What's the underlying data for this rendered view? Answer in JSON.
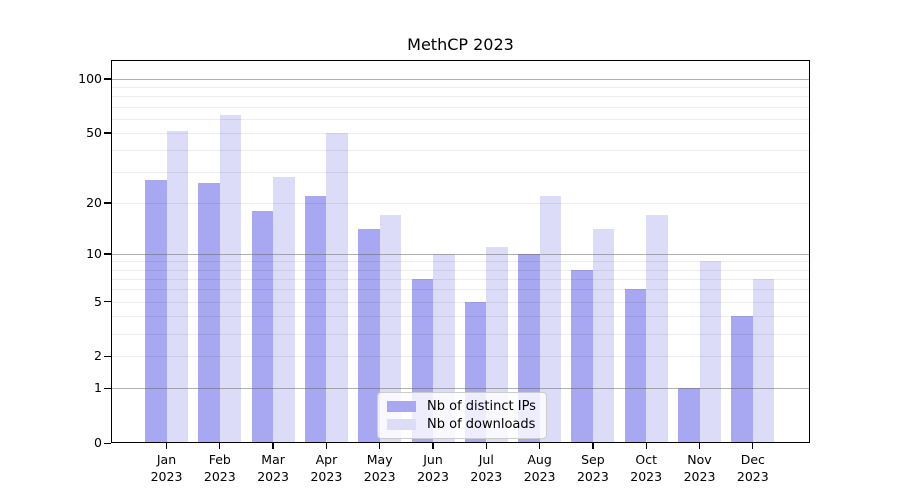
{
  "chart_data": {
    "type": "bar",
    "title": "MethCP 2023",
    "categories": [
      "Jan",
      "Feb",
      "Mar",
      "Apr",
      "May",
      "Jun",
      "Jul",
      "Aug",
      "Sep",
      "Oct",
      "Nov",
      "Dec"
    ],
    "year_label": "2023",
    "series": [
      {
        "name": "Nb of distinct IPs",
        "color": "#a7a7f2",
        "values": [
          27,
          26,
          18,
          22,
          14,
          7,
          5,
          10,
          8,
          6,
          1,
          4
        ]
      },
      {
        "name": "Nb of downloads",
        "color": "#dcdcf9",
        "values": [
          51,
          63,
          28,
          50,
          17,
          10,
          11,
          22,
          14,
          17,
          9,
          7
        ]
      }
    ],
    "y_axis": {
      "scale": "log1p",
      "range": [
        0,
        127
      ],
      "tick_labels": [
        0,
        1,
        2,
        5,
        10,
        20,
        50,
        100
      ],
      "major_gridlines": [
        1,
        10,
        100
      ],
      "minor_gridlines": [
        2,
        3,
        4,
        5,
        6,
        7,
        8,
        9,
        20,
        30,
        40,
        50,
        60,
        70,
        80,
        90
      ]
    },
    "legend": {
      "position": "lower-center-inside"
    },
    "grid": true,
    "styles": {
      "major_grid_color": "rgba(100,100,100,0.5)",
      "minor_grid_color": "rgba(0,0,0,0.07)",
      "spine_color": "#000000",
      "text_color": "#000000",
      "legend_border_color": "#cccccc",
      "legend_background": "rgba(255,255,255,0.8)"
    }
  }
}
